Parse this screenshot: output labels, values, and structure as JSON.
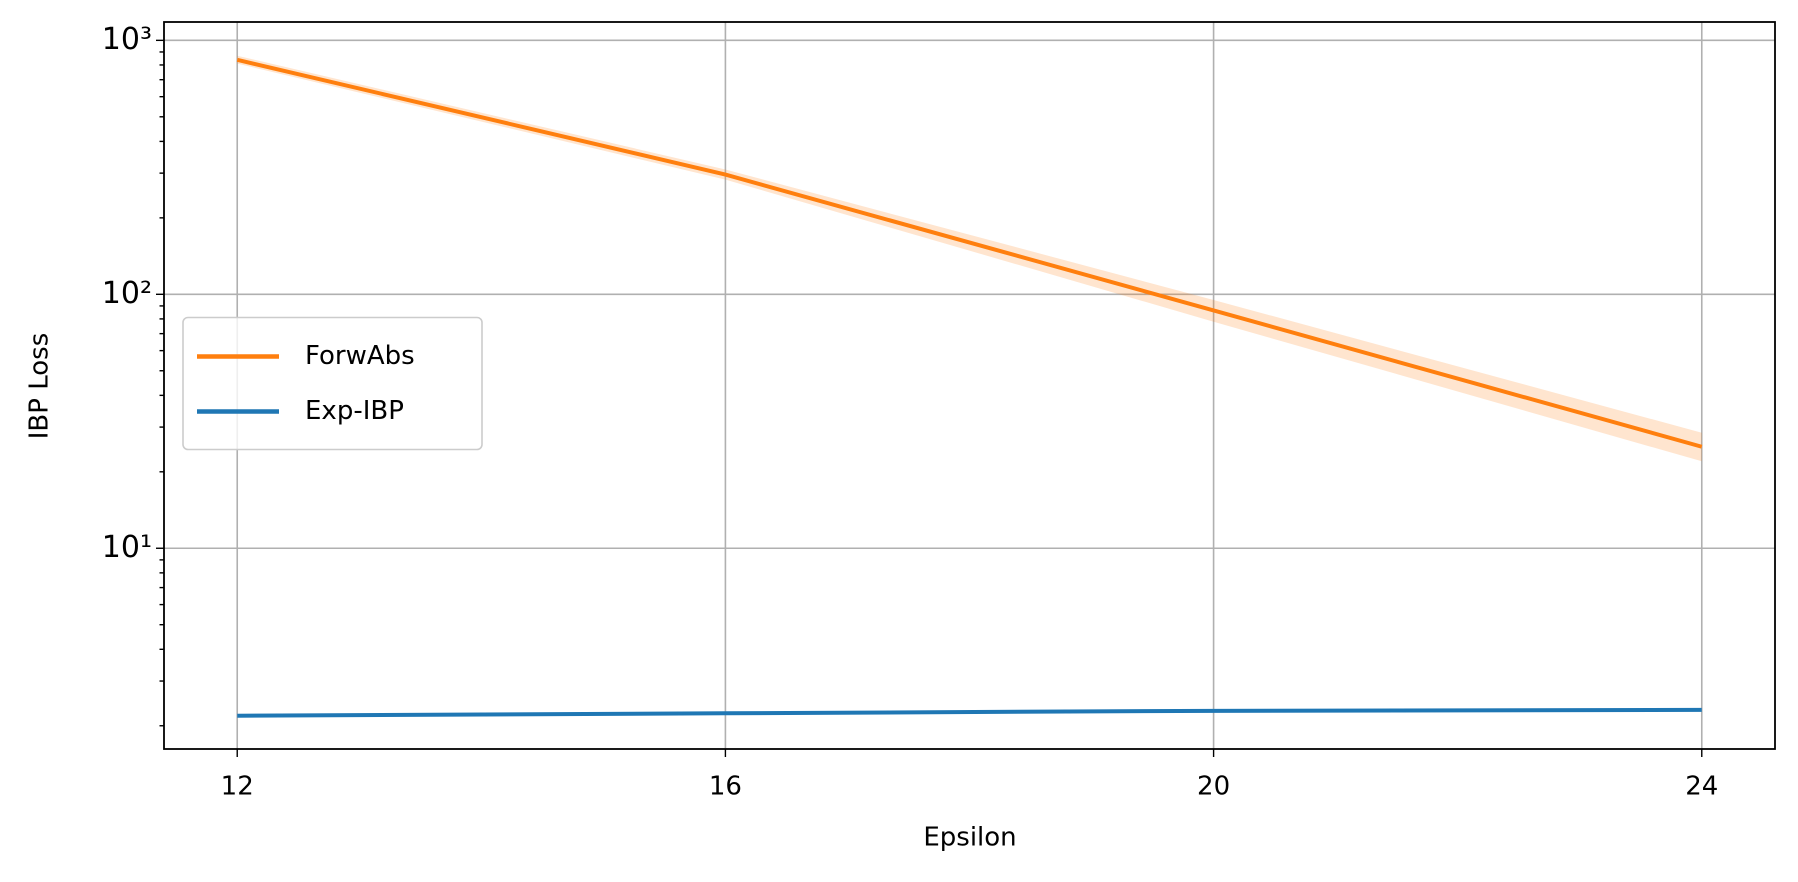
{
  "chart_data": {
    "type": "line",
    "x_label": "Epsilon",
    "y_label": "IBP Loss",
    "x": [
      12,
      16,
      20,
      24
    ],
    "series": [
      {
        "name": "ForwAbs",
        "color": "#ff7f0e",
        "values": [
          838,
          296,
          86.4,
          25.1
        ],
        "band_lower": [
          810,
          283,
          78,
          22
        ],
        "band_upper": [
          870,
          310,
          95,
          28.5
        ]
      },
      {
        "name": "Exp-IBP",
        "color": "#1f77b4",
        "values": [
          2.19,
          2.24,
          2.29,
          2.31
        ]
      }
    ],
    "xlim": [
      11.4,
      24.6
    ],
    "xticks": [
      12,
      16,
      20,
      24
    ],
    "ylim": [
      1.62,
      1181
    ],
    "yscale": "log",
    "yticks": [
      {
        "value": 10,
        "label": "10¹"
      },
      {
        "value": 100,
        "label": "10²"
      },
      {
        "value": 1000,
        "label": "10³"
      }
    ],
    "grid": true,
    "legend": "center left"
  }
}
